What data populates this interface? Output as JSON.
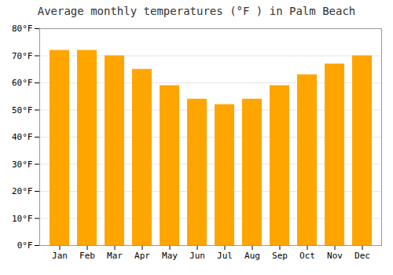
{
  "chart_data": {
    "type": "bar",
    "title": "Average monthly temperatures (°F ) in Palm Beach",
    "categories": [
      "Jan",
      "Feb",
      "Mar",
      "Apr",
      "May",
      "Jun",
      "Jul",
      "Aug",
      "Sep",
      "Oct",
      "Nov",
      "Dec"
    ],
    "values": [
      72,
      72,
      70,
      65,
      59,
      54,
      52,
      54,
      59,
      63,
      67,
      70
    ],
    "color": "#FFA500",
    "ylim": [
      0,
      80
    ],
    "yticks": [
      {
        "value": 0,
        "label": "0°F"
      },
      {
        "value": 10,
        "label": "10°F"
      },
      {
        "value": 20,
        "label": "20°F"
      },
      {
        "value": 30,
        "label": "30°F"
      },
      {
        "value": 40,
        "label": "40°F"
      },
      {
        "value": 50,
        "label": "50°F"
      },
      {
        "value": 60,
        "label": "60°F"
      },
      {
        "value": 70,
        "label": "70°F"
      },
      {
        "value": 80,
        "label": "80°F"
      }
    ],
    "grid": true
  }
}
